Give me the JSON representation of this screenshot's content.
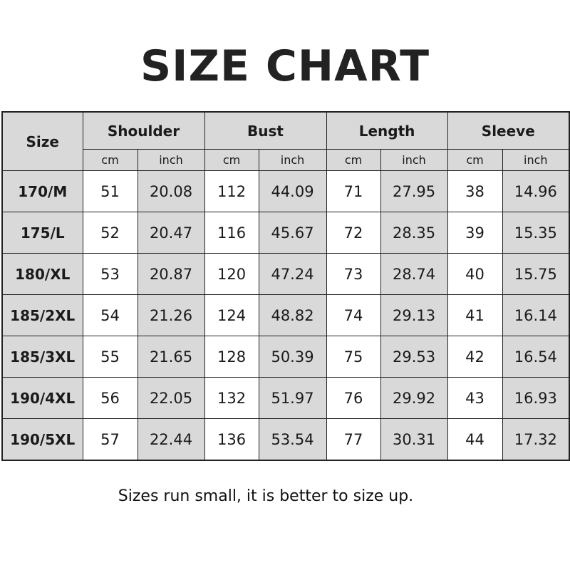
{
  "title": "SIZE CHART",
  "headers": {
    "size": "Size",
    "groups": [
      "Shoulder",
      "Bust",
      "Length",
      "Sleeve"
    ],
    "units": [
      "cm",
      "inch"
    ]
  },
  "rows": [
    [
      "170/M",
      "51",
      "20.08",
      "112",
      "44.09",
      "71",
      "27.95",
      "38",
      "14.96"
    ],
    [
      "175/L",
      "52",
      "20.47",
      "116",
      "45.67",
      "72",
      "28.35",
      "39",
      "15.35"
    ],
    [
      "180/XL",
      "53",
      "20.87",
      "120",
      "47.24",
      "73",
      "28.74",
      "40",
      "15.75"
    ],
    [
      "185/2XL",
      "54",
      "21.26",
      "124",
      "48.82",
      "74",
      "29.13",
      "41",
      "16.14"
    ],
    [
      "185/3XL",
      "55",
      "21.65",
      "128",
      "50.39",
      "75",
      "29.53",
      "42",
      "16.54"
    ],
    [
      "190/4XL",
      "56",
      "22.05",
      "132",
      "51.97",
      "76",
      "29.92",
      "43",
      "16.93"
    ],
    [
      "190/5XL",
      "57",
      "22.44",
      "136",
      "53.54",
      "77",
      "30.31",
      "44",
      "17.32"
    ]
  ],
  "note": "Sizes run small, it is better to size up.",
  "colors": {
    "header_bg": "#d9d9d9",
    "cm_bg": "#ffffff",
    "inch_bg": "#d9d9d9",
    "border": "#222222"
  }
}
